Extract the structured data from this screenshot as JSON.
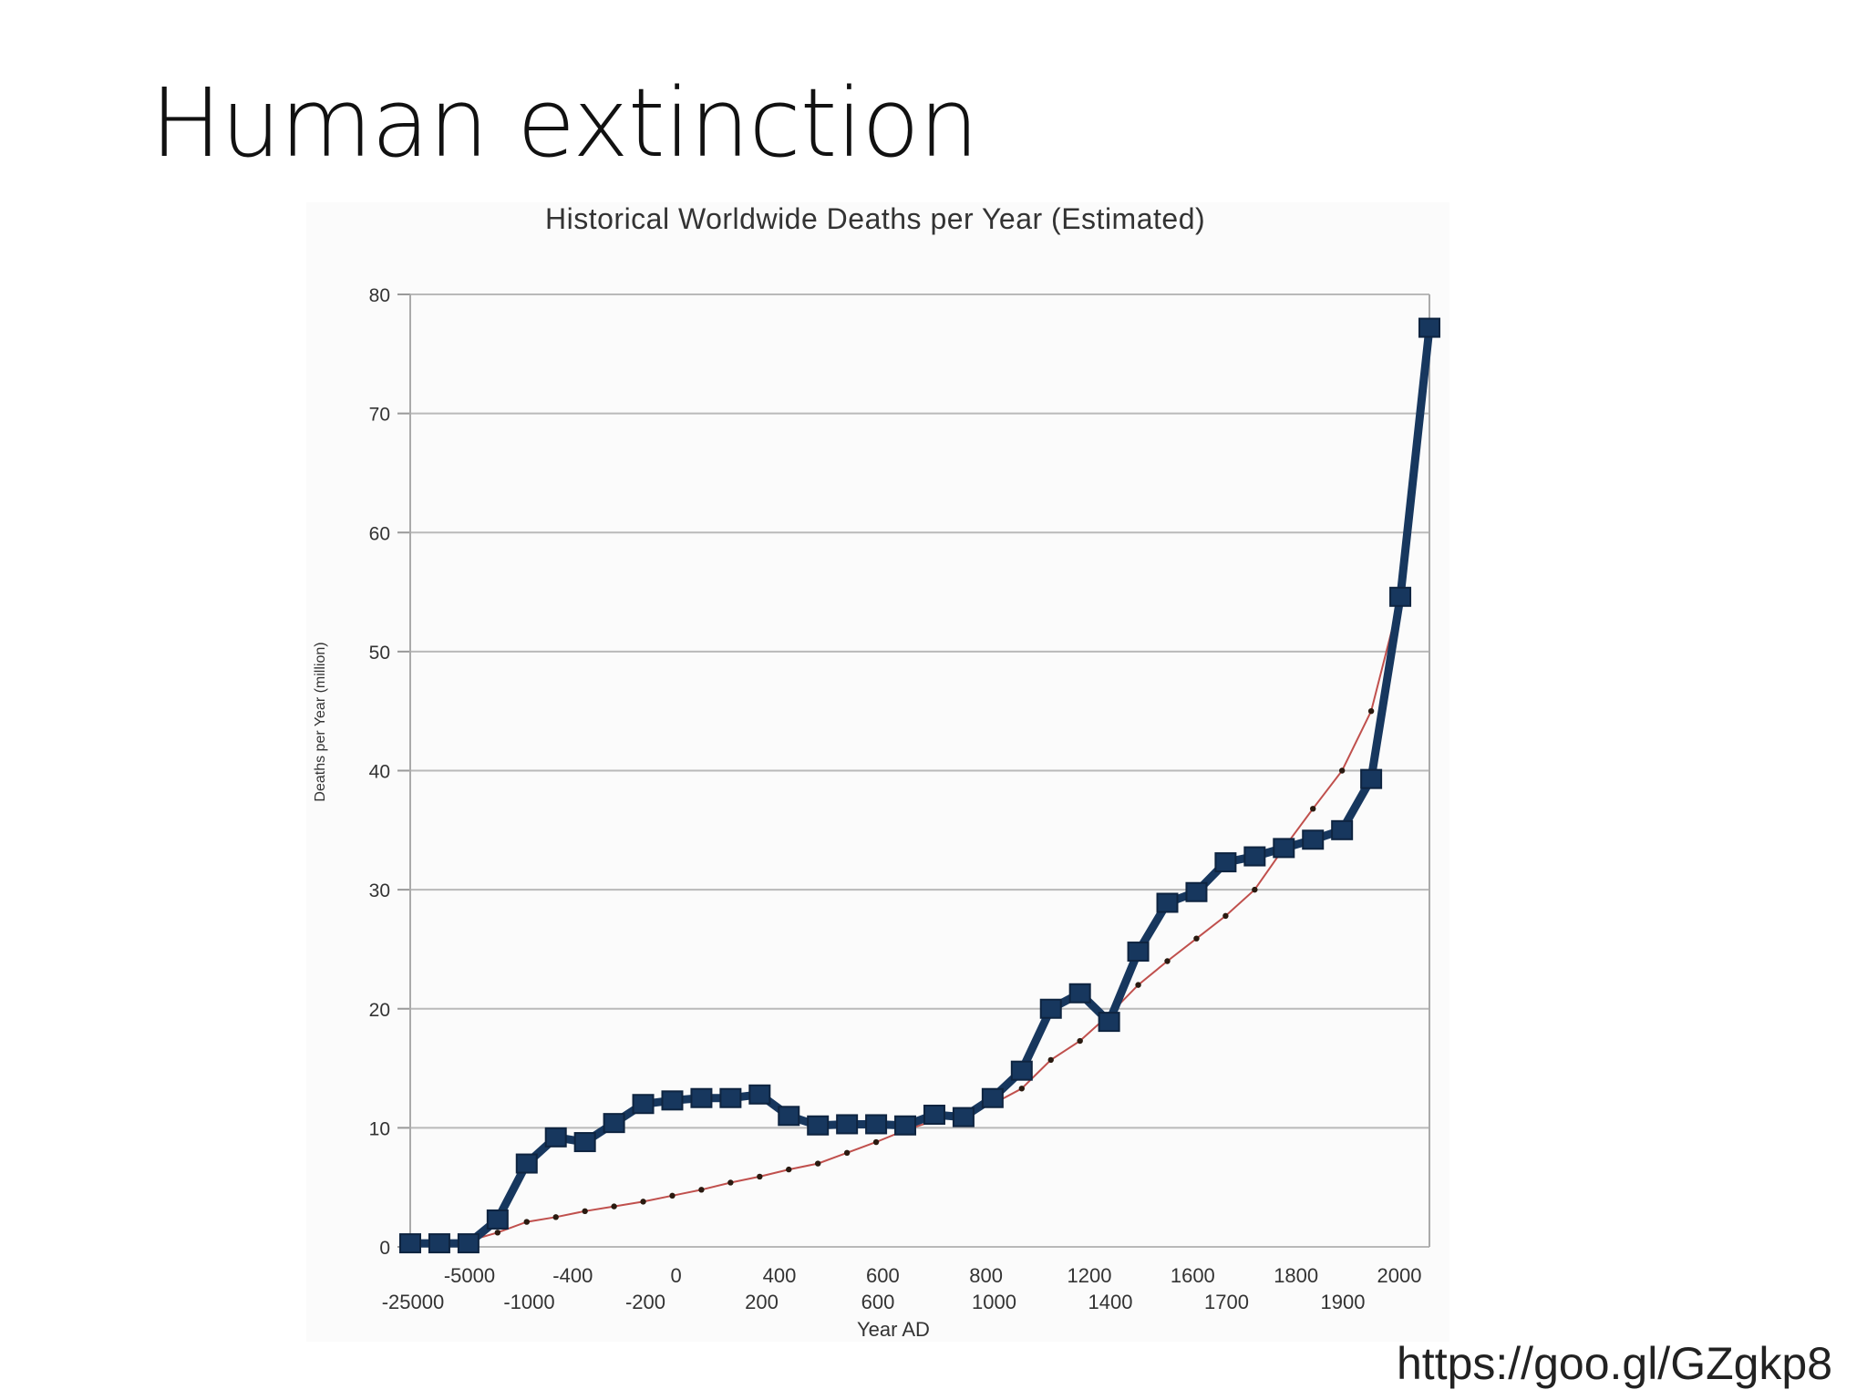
{
  "slide": {
    "title": "Human extinction",
    "source": "https://goo.gl/GZgkp8"
  },
  "chart_data": {
    "type": "line",
    "title": "Historical Worldwide Deaths per Year (Estimated)",
    "xlabel": "Year AD",
    "ylabel": "Deaths per Year (million)",
    "ylim": [
      0,
      80
    ],
    "yticks": [
      0,
      10,
      20,
      30,
      40,
      50,
      60,
      70,
      80
    ],
    "grid": true,
    "legend": "none",
    "x_ticks_upper": [
      "-5000",
      "-400",
      "0",
      "400",
      "600",
      "800",
      "1200",
      "1600",
      "1800",
      "2000"
    ],
    "x_ticks_lower": [
      "-25000",
      "-1000",
      "-200",
      "200",
      "600",
      "1000",
      "1400",
      "1700",
      "1900"
    ],
    "series": [
      {
        "color": "#17375e",
        "marker": "square",
        "values": [
          0.3,
          0.3,
          0.3,
          2.3,
          7,
          9.2,
          8.8,
          10.4,
          12,
          12.3,
          12.5,
          12.5,
          12.8,
          11,
          10.2,
          10.3,
          10.3,
          10.2,
          11.1,
          10.9,
          12.5,
          14.8,
          20,
          21.3,
          18.9,
          24.8,
          28.9,
          29.8,
          32.3,
          32.8,
          33.5,
          34.2,
          35,
          39.3,
          54.6,
          77.2
        ]
      },
      {
        "color": "#c0504d",
        "marker": "dot",
        "values": [
          0.2,
          0.3,
          0.5,
          1.2,
          2.1,
          2.5,
          3,
          3.4,
          3.8,
          4.3,
          4.8,
          5.4,
          5.9,
          6.5,
          7,
          7.9,
          8.8,
          9.8,
          10.6,
          11.3,
          12,
          13.3,
          15.7,
          17.3,
          19.5,
          22,
          24,
          25.9,
          27.8,
          30,
          33.5,
          36.8,
          40,
          45,
          54.6,
          77.2
        ]
      }
    ]
  }
}
